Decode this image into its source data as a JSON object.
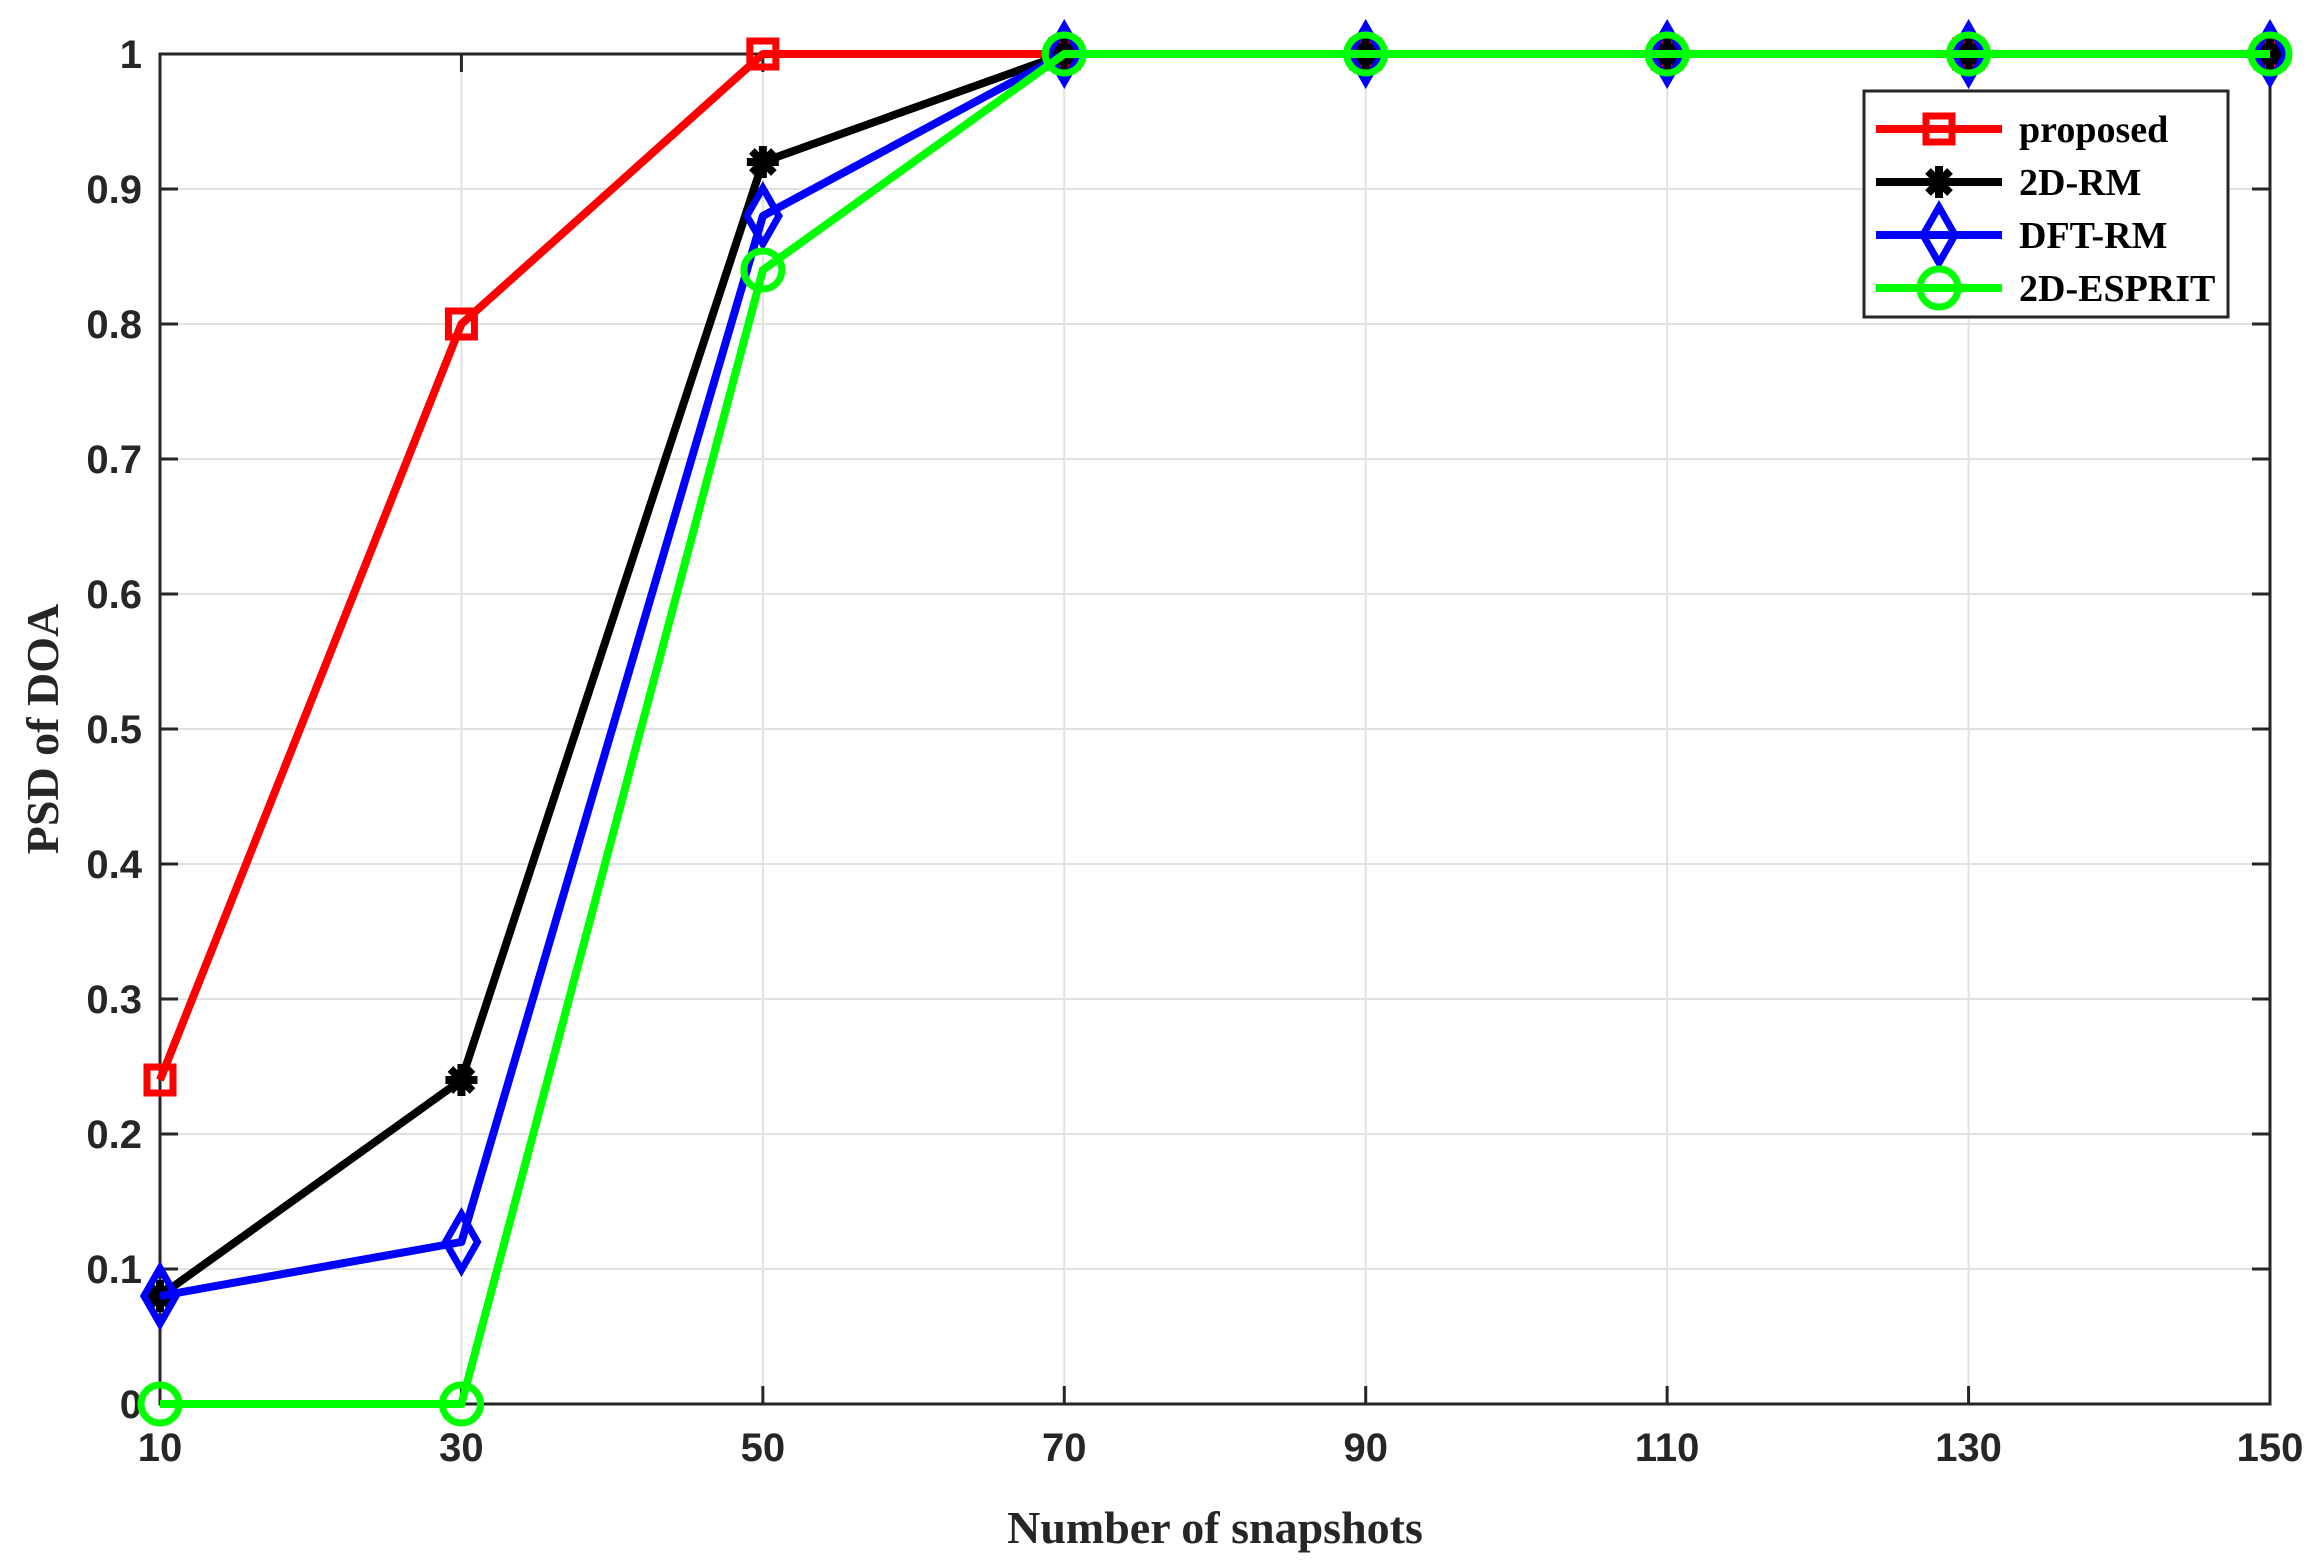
{
  "chart_data": {
    "type": "line",
    "x": [
      10,
      30,
      50,
      70,
      90,
      110,
      130,
      150
    ],
    "xticks": [
      10,
      30,
      50,
      70,
      90,
      110,
      130,
      150
    ],
    "yticks": [
      0,
      0.1,
      0.2,
      0.3,
      0.4,
      0.5,
      0.6,
      0.7,
      0.8,
      0.9,
      1
    ],
    "xlim": [
      10,
      150
    ],
    "ylim": [
      0,
      1
    ],
    "xlabel": "Number of snapshots",
    "ylabel": "PSD of DOA",
    "grid": true,
    "legend_position": "top-right",
    "series": [
      {
        "name": "proposed",
        "color": "#ff0000",
        "marker": "square",
        "values": [
          0.24,
          0.8,
          1.0,
          1.0,
          1.0,
          1.0,
          1.0,
          1.0
        ]
      },
      {
        "name": "2D-RM",
        "color": "#000000",
        "marker": "asterisk",
        "values": [
          0.08,
          0.24,
          0.92,
          1.0,
          1.0,
          1.0,
          1.0,
          1.0
        ]
      },
      {
        "name": "DFT-RM",
        "color": "#0000ff",
        "marker": "diamond",
        "values": [
          0.08,
          0.12,
          0.88,
          1.0,
          1.0,
          1.0,
          1.0,
          1.0
        ]
      },
      {
        "name": "2D-ESPRIT",
        "color": "#00ff00",
        "marker": "circle",
        "values": [
          0.0,
          0.0,
          0.84,
          1.0,
          1.0,
          1.0,
          1.0,
          1.0
        ]
      }
    ]
  }
}
